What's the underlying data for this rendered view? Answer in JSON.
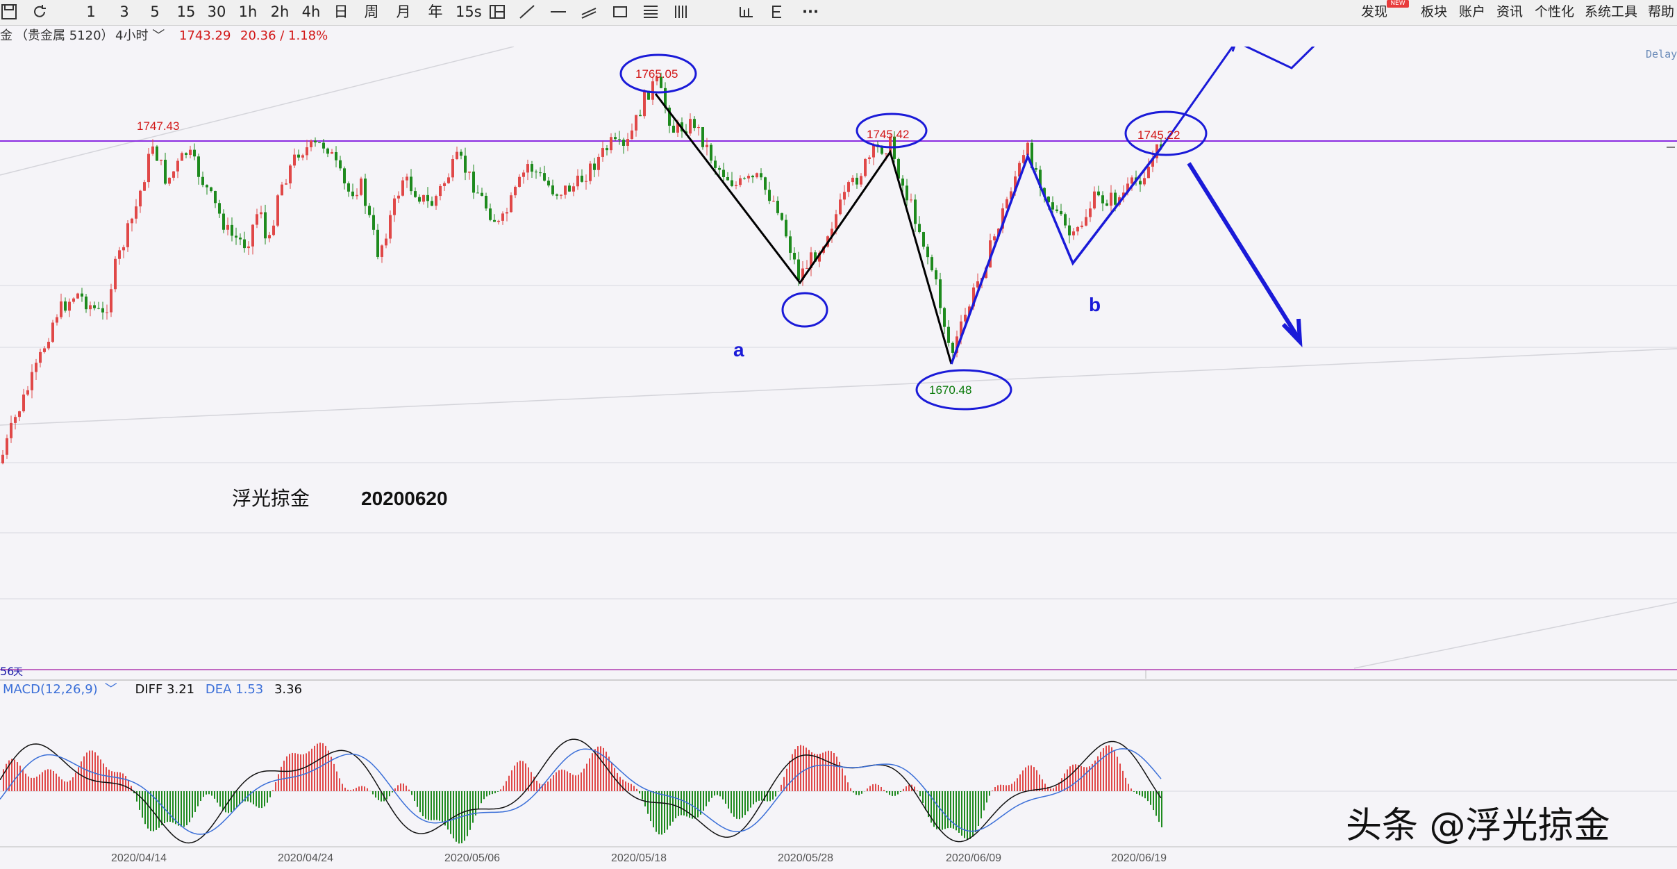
{
  "toolbar": {
    "periods": [
      "1",
      "3",
      "5",
      "15",
      "30",
      "1h",
      "2h",
      "4h",
      "日",
      "周",
      "月",
      "年",
      "15s"
    ],
    "icons": [
      "save-icon",
      "refresh-icon",
      "layout-icon",
      "line-tool-icon",
      "hline-tool-icon",
      "parallel-tool-icon",
      "rect-tool-icon",
      "fib-tool-icon",
      "bars-tool-icon",
      "wave-tool-icon",
      "extend-tool-icon",
      "more-icon"
    ],
    "more_label": "···",
    "menus": [
      "发现",
      "板块",
      "账户",
      "资讯",
      "个性化",
      "系统工具",
      "帮助"
    ],
    "new_badge": "NEW"
  },
  "info": {
    "symbol": "金",
    "market": "（贵金属 5120）",
    "period": "4小时",
    "price": "1743.29",
    "change": "20.36 / 1.18%",
    "delay": "Delay",
    "bottom_price": "56",
    "bottom_tag": "天"
  },
  "annotations": {
    "author": "浮光掠金",
    "date": "20200620",
    "wave_a": "a",
    "wave_b": "b",
    "levels": [
      {
        "label": "1765.05",
        "color": "#d21818"
      },
      {
        "label": "1747.43",
        "color": "#d21818"
      },
      {
        "label": "1745.42",
        "color": "#d21818"
      },
      {
        "label": "1745.22",
        "color": "#d21818"
      },
      {
        "label": "1670.48",
        "color": "#0a7a0a"
      }
    ]
  },
  "macd": {
    "title": "MACD(12,26,9)",
    "diff_label": "DIFF 3.21",
    "dea_label": "DEA 1.53",
    "macd_value": "3.36"
  },
  "dates": [
    "2020/04/14",
    "2020/04/24",
    "2020/05/06",
    "2020/05/18",
    "2020/05/28",
    "2020/06/09",
    "2020/06/19"
  ],
  "watermark": "头条 @浮光掠金",
  "colors": {
    "up": "#e04848",
    "down": "#1e8a1e",
    "resistance": "#8a2be2",
    "wave_black": "#000000",
    "wave_blue": "#1a1ad8",
    "diff_line": "#111111",
    "dea_line": "#3b6fd8"
  }
}
